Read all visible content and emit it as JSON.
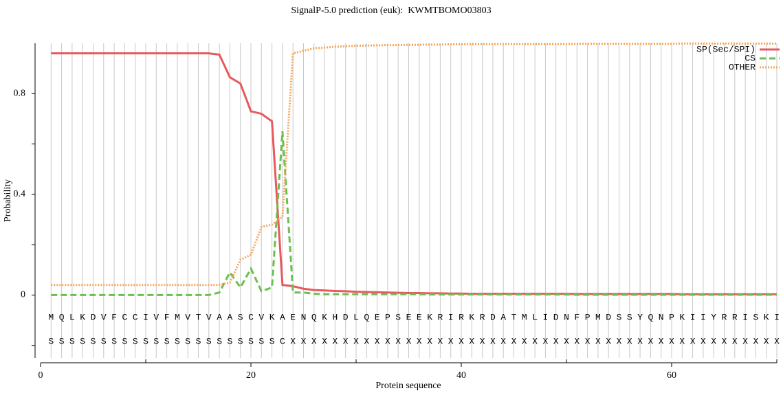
{
  "chart_data": {
    "type": "line",
    "title": "SignalP-5.0 prediction (euk):  KWMTBOMO03803",
    "x_label": "Protein sequence",
    "y_label": "Probability",
    "x": [
      1,
      2,
      3,
      4,
      5,
      6,
      7,
      8,
      9,
      10,
      11,
      12,
      13,
      14,
      15,
      16,
      17,
      18,
      19,
      20,
      21,
      22,
      23,
      24,
      25,
      26,
      27,
      28,
      29,
      30,
      31,
      32,
      33,
      34,
      35,
      36,
      37,
      38,
      39,
      40,
      41,
      42,
      43,
      44,
      45,
      46,
      47,
      48,
      49,
      50,
      51,
      52,
      53,
      54,
      55,
      56,
      57,
      58,
      59,
      60,
      61,
      62,
      63,
      64,
      65,
      66,
      67,
      68,
      69,
      70
    ],
    "sequence": [
      "M",
      "Q",
      "L",
      "K",
      "D",
      "V",
      "F",
      "C",
      "C",
      "I",
      "V",
      "F",
      "M",
      "V",
      "T",
      "V",
      "A",
      "A",
      "S",
      "C",
      "V",
      "K",
      "A",
      "E",
      "N",
      "Q",
      "K",
      "H",
      "D",
      "L",
      "Q",
      "E",
      "P",
      "S",
      "E",
      "E",
      "K",
      "R",
      "I",
      "R",
      "K",
      "R",
      "D",
      "A",
      "T",
      "M",
      "L",
      "I",
      "D",
      "N",
      "F",
      "P",
      "M",
      "D",
      "S",
      "S",
      "Y",
      "Q",
      "N",
      "P",
      "K",
      "I",
      "I",
      "Y",
      "R",
      "R",
      "I",
      "S",
      "K",
      "I"
    ],
    "prediction": [
      "S",
      "S",
      "S",
      "S",
      "S",
      "S",
      "S",
      "S",
      "S",
      "S",
      "S",
      "S",
      "S",
      "S",
      "S",
      "S",
      "S",
      "S",
      "S",
      "S",
      "S",
      "S",
      "C",
      "X",
      "X",
      "X",
      "X",
      "X",
      "X",
      "X",
      "X",
      "X",
      "X",
      "X",
      "X",
      "X",
      "X",
      "X",
      "X",
      "X",
      "X",
      "X",
      "X",
      "X",
      "X",
      "X",
      "X",
      "X",
      "X",
      "X",
      "X",
      "X",
      "X",
      "X",
      "X",
      "X",
      "X",
      "X",
      "X",
      "X",
      "X",
      "X",
      "X",
      "X",
      "X",
      "X",
      "X",
      "X",
      "X",
      "X"
    ],
    "series": [
      {
        "name": "SP(Sec/SPI)",
        "color": "#e8595c",
        "style": "solid",
        "values": [
          0.96,
          0.96,
          0.96,
          0.96,
          0.96,
          0.96,
          0.96,
          0.96,
          0.96,
          0.96,
          0.96,
          0.96,
          0.96,
          0.96,
          0.96,
          0.96,
          0.955,
          0.865,
          0.84,
          0.73,
          0.72,
          0.69,
          0.04,
          0.035,
          0.025,
          0.02,
          0.018,
          0.016,
          0.015,
          0.013,
          0.012,
          0.011,
          0.01,
          0.009,
          0.008,
          0.008,
          0.007,
          0.007,
          0.006,
          0.006,
          0.005,
          0.005,
          0.005,
          0.005,
          0.005,
          0.005,
          0.005,
          0.005,
          0.005,
          0.005,
          0.004,
          0.004,
          0.004,
          0.004,
          0.004,
          0.004,
          0.004,
          0.004,
          0.004,
          0.004,
          0.003,
          0.003,
          0.003,
          0.003,
          0.003,
          0.003,
          0.003,
          0.003,
          0.003,
          0.003
        ]
      },
      {
        "name": "CS",
        "color": "#6abf4f",
        "style": "dashed",
        "values": [
          0,
          0,
          0,
          0,
          0,
          0,
          0,
          0,
          0,
          0,
          0,
          0,
          0,
          0,
          0,
          0,
          0.01,
          0.09,
          0.03,
          0.105,
          0.015,
          0.03,
          0.65,
          0.01,
          0.01,
          0.005,
          0.003,
          0.003,
          0.003,
          0.003,
          0.003,
          0.003,
          0.003,
          0.003,
          0.003,
          0.003,
          0.002,
          0.002,
          0.002,
          0.002,
          0.002,
          0.002,
          0.002,
          0.002,
          0.002,
          0.002,
          0.002,
          0.002,
          0.002,
          0.002,
          0.001,
          0.001,
          0.001,
          0.001,
          0.001,
          0.001,
          0.001,
          0.001,
          0.001,
          0.001,
          0.001,
          0.001,
          0.001,
          0.001,
          0.001,
          0.001,
          0.001,
          0.001,
          0.001,
          0.001
        ]
      },
      {
        "name": "OTHER",
        "color": "#f5a55a",
        "style": "dotted",
        "values": [
          0.04,
          0.04,
          0.04,
          0.04,
          0.04,
          0.04,
          0.04,
          0.04,
          0.04,
          0.04,
          0.04,
          0.04,
          0.04,
          0.04,
          0.04,
          0.04,
          0.04,
          0.05,
          0.14,
          0.16,
          0.27,
          0.28,
          0.31,
          0.96,
          0.97,
          0.98,
          0.983,
          0.986,
          0.988,
          0.99,
          0.991,
          0.992,
          0.993,
          0.993,
          0.994,
          0.994,
          0.995,
          0.995,
          0.996,
          0.996,
          0.997,
          0.997,
          0.997,
          0.997,
          0.997,
          0.997,
          0.997,
          0.997,
          0.997,
          0.997,
          0.998,
          0.998,
          0.998,
          0.998,
          0.998,
          0.998,
          0.998,
          0.998,
          0.998,
          0.998,
          0.999,
          0.999,
          0.999,
          0.999,
          0.999,
          0.999,
          0.999,
          0.999,
          0.999,
          0.999
        ]
      }
    ],
    "xlim": [
      0,
      70
    ],
    "ylim": [
      -0.25,
      1.0
    ],
    "xticks": [
      0,
      20,
      40,
      60
    ],
    "xticks_minor": [
      10,
      30,
      50,
      70
    ],
    "yticks": [
      0,
      0.4,
      0.8
    ],
    "yticks_minor": [
      -0.2,
      0.2,
      0.6
    ],
    "grid": true,
    "legend": "upper right"
  }
}
